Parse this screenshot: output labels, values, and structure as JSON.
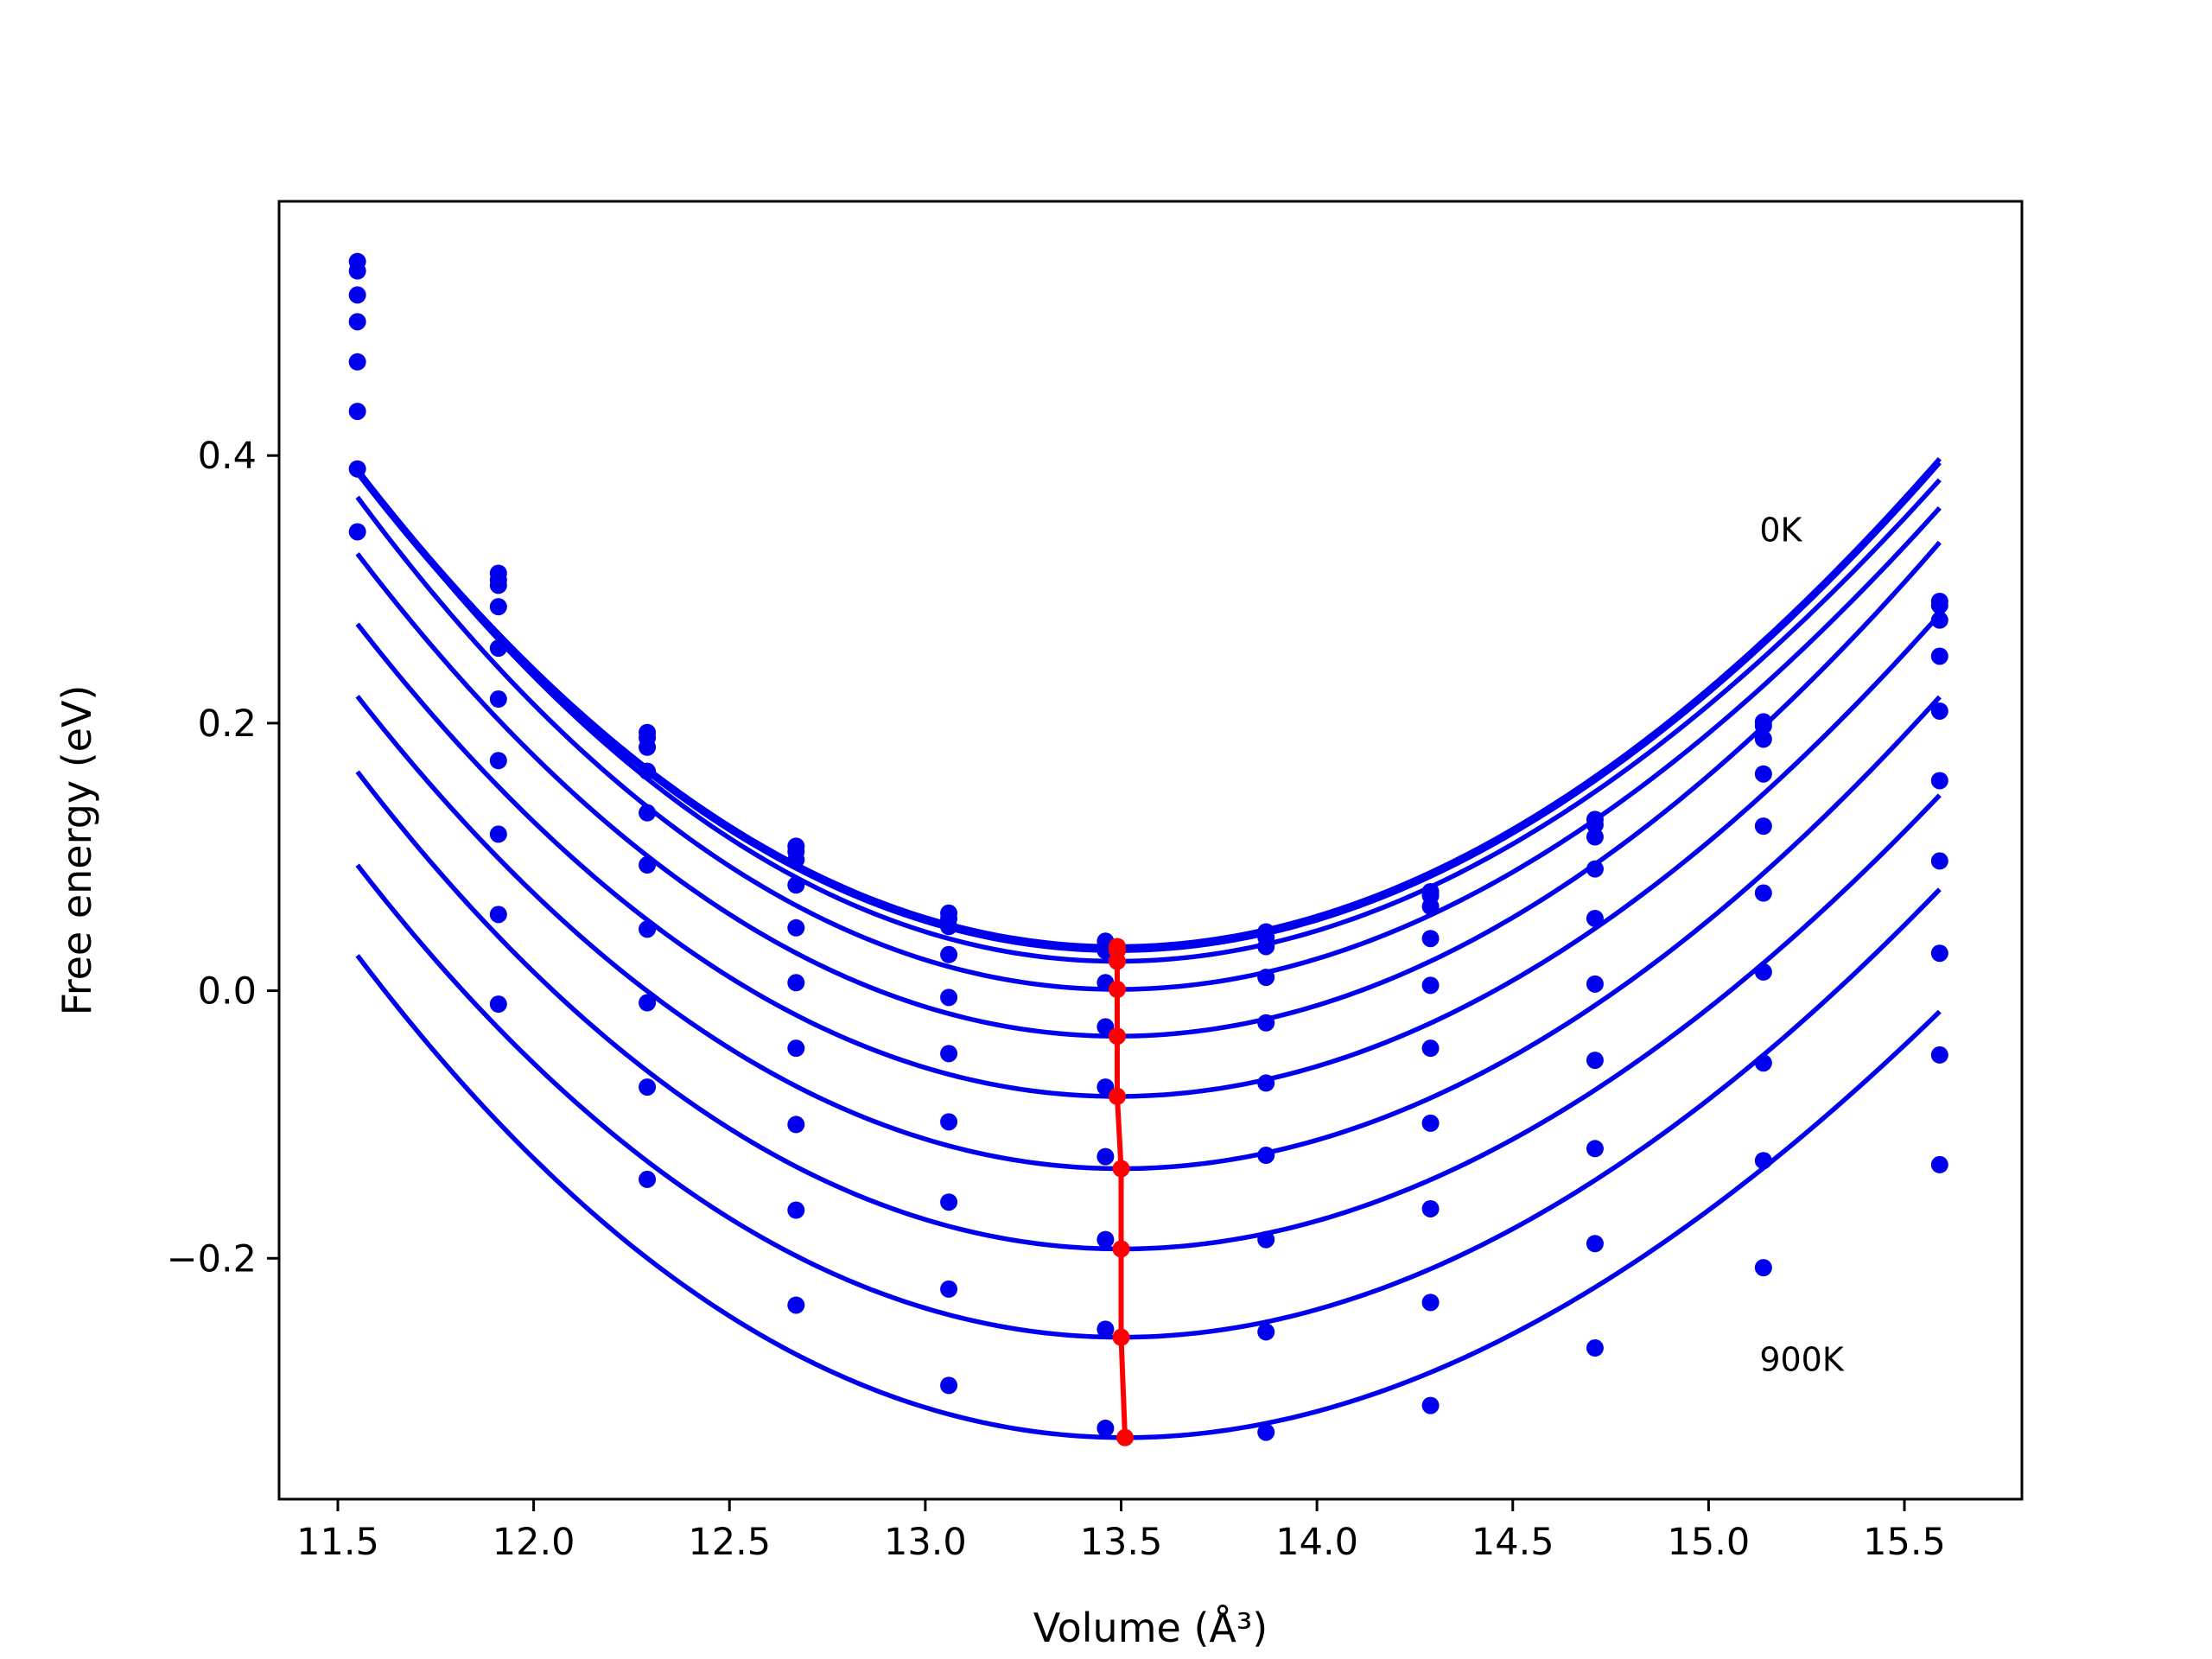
{
  "colors": {
    "fit_curves": "#0000ee",
    "points": "#0000ee",
    "minimum_line": "#ff0000",
    "frame": "#000000"
  },
  "chart_data": {
    "type": "line",
    "title": "",
    "xlabel": "Volume (Å³)",
    "ylabel": "Free energy (eV)",
    "xlim": [
      11.35,
      15.8
    ],
    "ylim": [
      -0.38,
      0.59
    ],
    "xticks": [
      11.5,
      12.0,
      12.5,
      13.0,
      13.5,
      14.0,
      14.5,
      15.0,
      15.5
    ],
    "xtick_labels": [
      "11.5",
      "12.0",
      "12.5",
      "13.0",
      "13.5",
      "14.0",
      "14.5",
      "15.0",
      "15.5"
    ],
    "yticks": [
      -0.2,
      0.0,
      0.2,
      0.4
    ],
    "ytick_labels": [
      "−0.2",
      "0.0",
      "0.2",
      "0.4"
    ],
    "grid": false,
    "legend": "none",
    "annotations": [
      {
        "text": "0K",
        "x": 15.13,
        "y": 0.345
      },
      {
        "text": "900K",
        "x": 15.13,
        "y": -0.275
      }
    ],
    "data_x": [
      11.55,
      11.91,
      12.29,
      12.67,
      13.06,
      13.46,
      13.87,
      14.29,
      14.71,
      15.14,
      15.59
    ],
    "fit_x_range": [
      11.55,
      15.59
    ],
    "series": [
      {
        "E0": 0.033,
        "V0": 13.49,
        "a": 0.089,
        "b": -0.003,
        "points": [
          0.545,
          0.312,
          0.193,
          0.108,
          0.058,
          0.037,
          0.044,
          0.074,
          0.128,
          0.201,
          0.291
        ]
      },
      {
        "E0": 0.03,
        "V0": 13.49,
        "a": 0.089,
        "b": -0.003,
        "points": [
          0.538,
          0.307,
          0.189,
          0.104,
          0.054,
          0.033,
          0.04,
          0.071,
          0.124,
          0.198,
          0.288
        ]
      },
      {
        "E0": 0.022,
        "V0": 13.49,
        "a": 0.09,
        "b": -0.004,
        "points": [
          0.52,
          0.303,
          0.182,
          0.098,
          0.048,
          0.03,
          0.033,
          0.063,
          0.115,
          0.188,
          0.277
        ]
      },
      {
        "E0": 0.001,
        "V0": 13.49,
        "a": 0.09,
        "b": -0.004,
        "points": [
          0.5,
          0.287,
          0.164,
          0.079,
          0.027,
          0.006,
          0.01,
          0.039,
          0.091,
          0.162,
          0.25
        ]
      },
      {
        "E0": -0.034,
        "V0": 13.49,
        "a": 0.09,
        "b": -0.003,
        "points": [
          0.47,
          0.256,
          0.133,
          0.047,
          -0.005,
          -0.027,
          -0.024,
          0.004,
          0.054,
          0.123,
          0.209
        ]
      },
      {
        "E0": -0.079,
        "V0": 13.49,
        "a": 0.088,
        "b": -0.003,
        "points": [
          0.433,
          0.218,
          0.094,
          0.006,
          -0.047,
          -0.072,
          -0.069,
          -0.043,
          0.005,
          0.073,
          0.157
        ]
      },
      {
        "E0": -0.133,
        "V0": 13.5,
        "a": 0.087,
        "b": -0.003,
        "points": [
          0.39,
          0.172,
          0.046,
          -0.043,
          -0.098,
          -0.124,
          -0.123,
          -0.099,
          -0.052,
          0.014,
          0.097
        ]
      },
      {
        "E0": -0.193,
        "V0": 13.5,
        "a": 0.086,
        "b": -0.004,
        "points": [
          0.343,
          0.117,
          -0.009,
          -0.1,
          -0.158,
          -0.186,
          -0.186,
          -0.163,
          -0.118,
          -0.054,
          0.028
        ]
      },
      {
        "E0": -0.259,
        "V0": 13.5,
        "a": 0.085,
        "b": -0.004,
        "points": [
          null,
          0.057,
          -0.072,
          -0.164,
          -0.223,
          -0.253,
          -0.255,
          -0.233,
          -0.189,
          -0.127,
          -0.048
        ]
      },
      {
        "E0": -0.334,
        "V0": 13.51,
        "a": 0.084,
        "b": -0.005,
        "points": [
          null,
          -0.01,
          -0.141,
          -0.235,
          -0.295,
          -0.327,
          -0.33,
          -0.31,
          -0.267,
          -0.207,
          -0.13
        ]
      }
    ],
    "minimum_line": {
      "x": [
        13.49,
        13.49,
        13.49,
        13.49,
        13.49,
        13.49,
        13.5,
        13.5,
        13.5,
        13.51
      ],
      "y": [
        0.033,
        0.03,
        0.022,
        0.001,
        -0.034,
        -0.079,
        -0.133,
        -0.193,
        -0.259,
        -0.334
      ]
    }
  }
}
